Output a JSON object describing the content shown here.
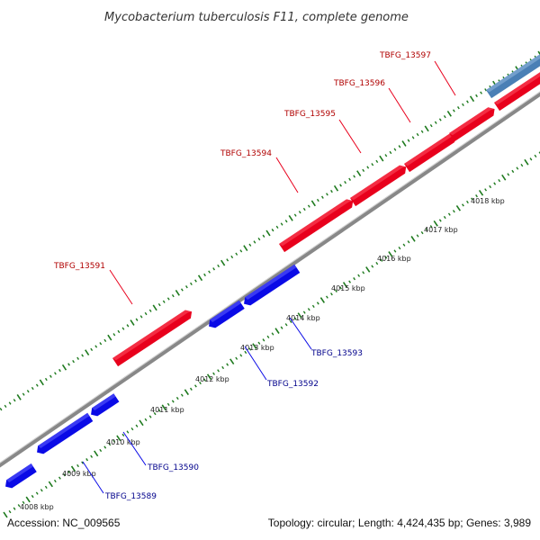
{
  "header": {
    "title": "Mycobacterium tuberculosis F11, complete genome"
  },
  "footer": {
    "accession": "Accession: NC_009565",
    "summary": "Topology: circular; Length: 4,424,435 bp; Genes: 3,989"
  },
  "colors": {
    "forward": "#e8001c",
    "reverse": "#0a0ae6",
    "highlight": "#4a7fb5",
    "backbone": "#8a8a8a",
    "tick": "#1e7a1e",
    "forward_label": "#b00000",
    "reverse_label": "#00008b"
  },
  "scale_labels": [
    "4008 kbp",
    "4009 kbp",
    "4010 kbp",
    "4011 kbp",
    "4012 kbp",
    "4013 kbp",
    "4014 kbp",
    "4015 kbp",
    "4016 kbp",
    "4017 kbp",
    "4018 kbp"
  ],
  "forward_labels": [
    "TBFG_13591",
    "TBFG_13594",
    "TBFG_13595",
    "TBFG_13596",
    "TBFG_13597"
  ],
  "reverse_labels": [
    "TBFG_13589",
    "TBFG_13590",
    "TBFG_13592",
    "TBFG_13593"
  ]
}
